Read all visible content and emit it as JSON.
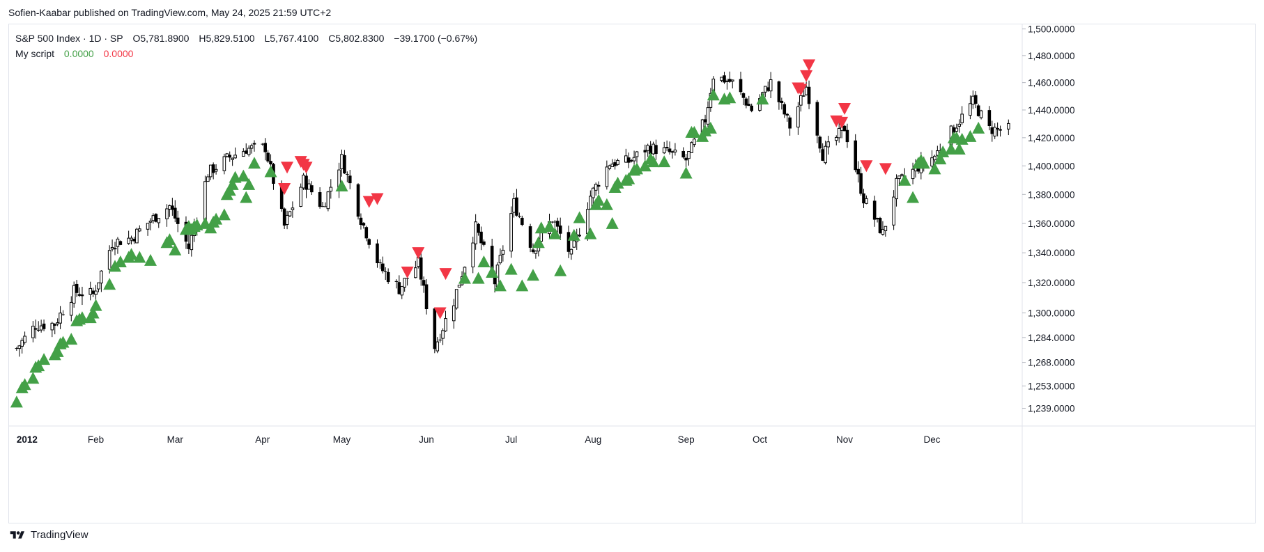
{
  "publisher": "Sofien-Kaabar published on TradingView.com, May 24, 2025 21:59 UTC+2",
  "footer": {
    "brand": "TradingView",
    "logo_icon": "tradingview-logo-icon"
  },
  "legend": {
    "symbol": "S&P 500 Index · 1D · SP",
    "open": "O5,781.8900",
    "high": "H5,829.5100",
    "low": "L5,767.4100",
    "close": "C5,802.8300",
    "change": "−39.1700 (−0.67%)",
    "script_name": "My script",
    "script_val1": "0.0000",
    "script_val2": "0.0000"
  },
  "colors": {
    "up_signal": "#43a047",
    "down_signal": "#f23645",
    "candle": "#000000",
    "grid": "#e0e3eb",
    "text": "#131722"
  },
  "chart_data": {
    "type": "candlestick",
    "title": "",
    "x_axis": {
      "labels": [
        {
          "label": "2012",
          "date": "2012-01-03"
        },
        {
          "label": "Feb",
          "date": "2012-02-01"
        },
        {
          "label": "Mar",
          "date": "2012-03-01"
        },
        {
          "label": "Apr",
          "date": "2012-04-02"
        },
        {
          "label": "May",
          "date": "2012-05-01"
        },
        {
          "label": "Jun",
          "date": "2012-06-01"
        },
        {
          "label": "Jul",
          "date": "2012-07-02"
        },
        {
          "label": "Aug",
          "date": "2012-08-01"
        },
        {
          "label": "Sep",
          "date": "2012-09-04"
        },
        {
          "label": "Oct",
          "date": "2012-10-01"
        },
        {
          "label": "Nov",
          "date": "2012-11-01"
        },
        {
          "label": "Dec",
          "date": "2012-12-03"
        }
      ],
      "range": [
        "2012-01-01",
        "2013-01-04"
      ]
    },
    "y_axis": {
      "scale": "log",
      "ticks": [
        "1,500.0000",
        "1,480.0000",
        "1,460.0000",
        "1,440.0000",
        "1,420.0000",
        "1,400.0000",
        "1,380.0000",
        "1,360.0000",
        "1,340.0000",
        "1,320.0000",
        "1,300.0000",
        "1,284.0000",
        "1,268.0000",
        "1,253.0000",
        "1,239.0000"
      ],
      "range": [
        1228,
        1504
      ]
    },
    "grid": false,
    "series_close": [
      [
        "2012-01-03",
        1277
      ],
      [
        "2012-01-10",
        1292
      ],
      [
        "2012-01-17",
        1293
      ],
      [
        "2012-01-24",
        1314
      ],
      [
        "2012-01-31",
        1312
      ],
      [
        "2012-02-07",
        1347
      ],
      [
        "2012-02-14",
        1350
      ],
      [
        "2012-02-21",
        1362
      ],
      [
        "2012-02-28",
        1372
      ],
      [
        "2012-03-06",
        1343
      ],
      [
        "2012-03-13",
        1395
      ],
      [
        "2012-03-20",
        1405
      ],
      [
        "2012-03-27",
        1412
      ],
      [
        "2012-04-03",
        1413
      ],
      [
        "2012-04-10",
        1358
      ],
      [
        "2012-04-17",
        1390
      ],
      [
        "2012-04-24",
        1371
      ],
      [
        "2012-05-01",
        1405
      ],
      [
        "2012-05-08",
        1363
      ],
      [
        "2012-05-15",
        1330
      ],
      [
        "2012-05-22",
        1316
      ],
      [
        "2012-05-29",
        1333
      ],
      [
        "2012-06-04",
        1278
      ],
      [
        "2012-06-11",
        1308
      ],
      [
        "2012-06-19",
        1357
      ],
      [
        "2012-06-26",
        1320
      ],
      [
        "2012-07-03",
        1374
      ],
      [
        "2012-07-10",
        1342
      ],
      [
        "2012-07-17",
        1363
      ],
      [
        "2012-07-24",
        1338
      ],
      [
        "2012-07-31",
        1379
      ],
      [
        "2012-08-07",
        1402
      ],
      [
        "2012-08-14",
        1403
      ],
      [
        "2012-08-21",
        1413
      ],
      [
        "2012-08-28",
        1410
      ],
      [
        "2012-09-04",
        1404
      ],
      [
        "2012-09-11",
        1433
      ],
      [
        "2012-09-14",
        1465
      ],
      [
        "2012-09-21",
        1460
      ],
      [
        "2012-09-28",
        1440
      ],
      [
        "2012-10-05",
        1460
      ],
      [
        "2012-10-12",
        1428
      ],
      [
        "2012-10-18",
        1457
      ],
      [
        "2012-10-24",
        1408
      ],
      [
        "2012-11-01",
        1427
      ],
      [
        "2012-11-08",
        1377
      ],
      [
        "2012-11-15",
        1353
      ],
      [
        "2012-11-20",
        1387
      ],
      [
        "2012-11-27",
        1398
      ],
      [
        "2012-12-04",
        1407
      ],
      [
        "2012-12-11",
        1427
      ],
      [
        "2012-12-18",
        1446
      ],
      [
        "2012-12-24",
        1426
      ],
      [
        "2012-12-31",
        1426
      ]
    ],
    "signals": {
      "buy": {
        "name": "",
        "points": [
          [
            "2012-01-03",
            1243
          ],
          [
            "2012-01-05",
            1252
          ],
          [
            "2012-01-06",
            1254
          ],
          [
            "2012-01-09",
            1258
          ],
          [
            "2012-01-10",
            1265
          ],
          [
            "2012-01-11",
            1266
          ],
          [
            "2012-01-13",
            1270
          ],
          [
            "2012-01-17",
            1273
          ],
          [
            "2012-01-18",
            1275
          ],
          [
            "2012-01-19",
            1280
          ],
          [
            "2012-01-20",
            1281
          ],
          [
            "2012-01-23",
            1283
          ],
          [
            "2012-01-25",
            1295
          ],
          [
            "2012-01-26",
            1296
          ],
          [
            "2012-01-27",
            1297
          ],
          [
            "2012-01-30",
            1297
          ],
          [
            "2012-01-31",
            1300
          ],
          [
            "2012-02-01",
            1305
          ],
          [
            "2012-02-06",
            1319
          ],
          [
            "2012-02-08",
            1331
          ],
          [
            "2012-02-10",
            1334
          ],
          [
            "2012-02-13",
            1337
          ],
          [
            "2012-02-14",
            1339
          ],
          [
            "2012-02-17",
            1337
          ],
          [
            "2012-02-21",
            1335
          ],
          [
            "2012-02-27",
            1347
          ],
          [
            "2012-02-28",
            1349
          ],
          [
            "2012-03-01",
            1342
          ],
          [
            "2012-03-05",
            1356
          ],
          [
            "2012-03-06",
            1358
          ],
          [
            "2012-03-07",
            1356
          ],
          [
            "2012-03-08",
            1358
          ],
          [
            "2012-03-09",
            1359
          ],
          [
            "2012-03-12",
            1360
          ],
          [
            "2012-03-14",
            1357
          ],
          [
            "2012-03-15",
            1361
          ],
          [
            "2012-03-16",
            1363
          ],
          [
            "2012-03-19",
            1366
          ],
          [
            "2012-03-20",
            1380
          ],
          [
            "2012-03-21",
            1383
          ],
          [
            "2012-03-22",
            1387
          ],
          [
            "2012-03-23",
            1392
          ],
          [
            "2012-03-26",
            1393
          ],
          [
            "2012-03-27",
            1378
          ],
          [
            "2012-03-28",
            1387
          ],
          [
            "2012-03-30",
            1402
          ],
          [
            "2012-04-05",
            1396
          ],
          [
            "2012-05-01",
            1386
          ],
          [
            "2012-06-15",
            1323
          ],
          [
            "2012-06-20",
            1323
          ],
          [
            "2012-06-22",
            1334
          ],
          [
            "2012-06-25",
            1327
          ],
          [
            "2012-06-28",
            1318
          ],
          [
            "2012-07-02",
            1329
          ],
          [
            "2012-07-06",
            1318
          ],
          [
            "2012-07-10",
            1325
          ],
          [
            "2012-07-12",
            1347
          ],
          [
            "2012-07-13",
            1357
          ],
          [
            "2012-07-16",
            1358
          ],
          [
            "2012-07-18",
            1353
          ],
          [
            "2012-07-20",
            1328
          ],
          [
            "2012-07-25",
            1352
          ],
          [
            "2012-07-27",
            1364
          ],
          [
            "2012-07-31",
            1353
          ],
          [
            "2012-08-02",
            1373
          ],
          [
            "2012-08-03",
            1376
          ],
          [
            "2012-08-06",
            1373
          ],
          [
            "2012-08-08",
            1360
          ],
          [
            "2012-08-09",
            1385
          ],
          [
            "2012-08-10",
            1388
          ],
          [
            "2012-08-13",
            1390
          ],
          [
            "2012-08-14",
            1391
          ],
          [
            "2012-08-16",
            1397
          ],
          [
            "2012-08-17",
            1398
          ],
          [
            "2012-08-20",
            1400
          ],
          [
            "2012-08-22",
            1405
          ],
          [
            "2012-08-23",
            1403
          ],
          [
            "2012-08-27",
            1403
          ],
          [
            "2012-09-04",
            1395
          ],
          [
            "2012-09-06",
            1424
          ],
          [
            "2012-09-07",
            1424
          ],
          [
            "2012-09-10",
            1421
          ],
          [
            "2012-09-11",
            1425
          ],
          [
            "2012-09-13",
            1427
          ],
          [
            "2012-09-14",
            1451
          ],
          [
            "2012-09-18",
            1448
          ],
          [
            "2012-09-20",
            1449
          ],
          [
            "2012-10-02",
            1448
          ],
          [
            "2012-11-23",
            1390
          ],
          [
            "2012-11-26",
            1378
          ],
          [
            "2012-11-28",
            1402
          ],
          [
            "2012-11-29",
            1404
          ],
          [
            "2012-11-30",
            1402
          ],
          [
            "2012-12-04",
            1398
          ],
          [
            "2012-12-06",
            1405
          ],
          [
            "2012-12-07",
            1410
          ],
          [
            "2012-12-10",
            1412
          ],
          [
            "2012-12-11",
            1420
          ],
          [
            "2012-12-12",
            1420
          ],
          [
            "2012-12-13",
            1412
          ],
          [
            "2012-12-14",
            1419
          ],
          [
            "2012-12-17",
            1421
          ],
          [
            "2012-12-20",
            1427
          ]
        ]
      },
      "sell": {
        "name": "",
        "points": [
          [
            "2012-04-10",
            1384
          ],
          [
            "2012-04-11",
            1399
          ],
          [
            "2012-04-16",
            1403
          ],
          [
            "2012-04-17",
            1401
          ],
          [
            "2012-04-18",
            1399
          ],
          [
            "2012-05-11",
            1375
          ],
          [
            "2012-05-14",
            1377
          ],
          [
            "2012-05-25",
            1327
          ],
          [
            "2012-05-29",
            1340
          ],
          [
            "2012-06-06",
            1300
          ],
          [
            "2012-06-08",
            1326
          ],
          [
            "2012-10-15",
            1456
          ],
          [
            "2012-10-16",
            1455
          ],
          [
            "2012-10-18",
            1465
          ],
          [
            "2012-10-19",
            1473
          ],
          [
            "2012-10-29",
            1432
          ],
          [
            "2012-10-31",
            1431
          ],
          [
            "2012-11-01",
            1441
          ],
          [
            "2012-11-09",
            1400
          ],
          [
            "2012-11-16",
            1398
          ]
        ]
      }
    }
  }
}
